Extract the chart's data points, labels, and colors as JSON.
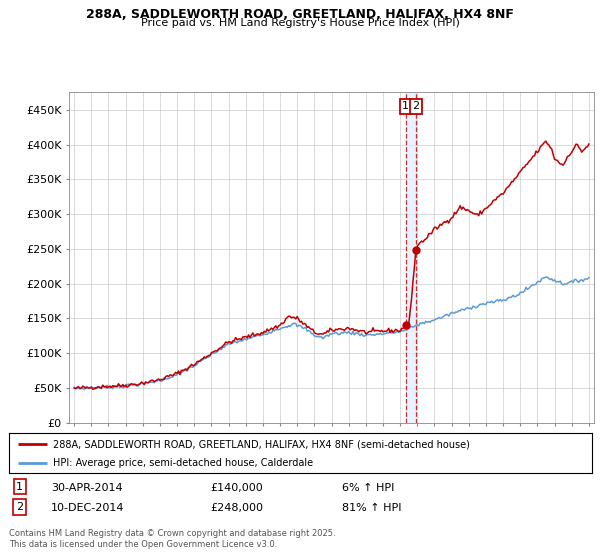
{
  "title1": "288A, SADDLEWORTH ROAD, GREETLAND, HALIFAX, HX4 8NF",
  "title2": "Price paid vs. HM Land Registry's House Price Index (HPI)",
  "legend_line1": "288A, SADDLEWORTH ROAD, GREETLAND, HALIFAX, HX4 8NF (semi-detached house)",
  "legend_line2": "HPI: Average price, semi-detached house, Calderdale",
  "annotation1_date": "30-APR-2014",
  "annotation1_price": "£140,000",
  "annotation1_hpi": "6% ↑ HPI",
  "annotation2_date": "10-DEC-2014",
  "annotation2_price": "£248,000",
  "annotation2_hpi": "81% ↑ HPI",
  "footnote": "Contains HM Land Registry data © Crown copyright and database right 2025.\nThis data is licensed under the Open Government Licence v3.0.",
  "hpi_color": "#5b9bd5",
  "price_color": "#c00000",
  "annotation_color": "#c00000",
  "shade_color": "#ddeeff",
  "background_color": "#ffffff",
  "ylim": [
    0,
    475000
  ],
  "yticks": [
    0,
    50000,
    100000,
    150000,
    200000,
    250000,
    300000,
    350000,
    400000,
    450000
  ],
  "ytick_labels": [
    "£0",
    "£50K",
    "£100K",
    "£150K",
    "£200K",
    "£250K",
    "£300K",
    "£350K",
    "£400K",
    "£450K"
  ],
  "sale1_year": 2014.33,
  "sale1_value": 140000,
  "sale2_year": 2014.92,
  "sale2_value": 248000,
  "xmin": 1994.7,
  "xmax": 2025.3
}
